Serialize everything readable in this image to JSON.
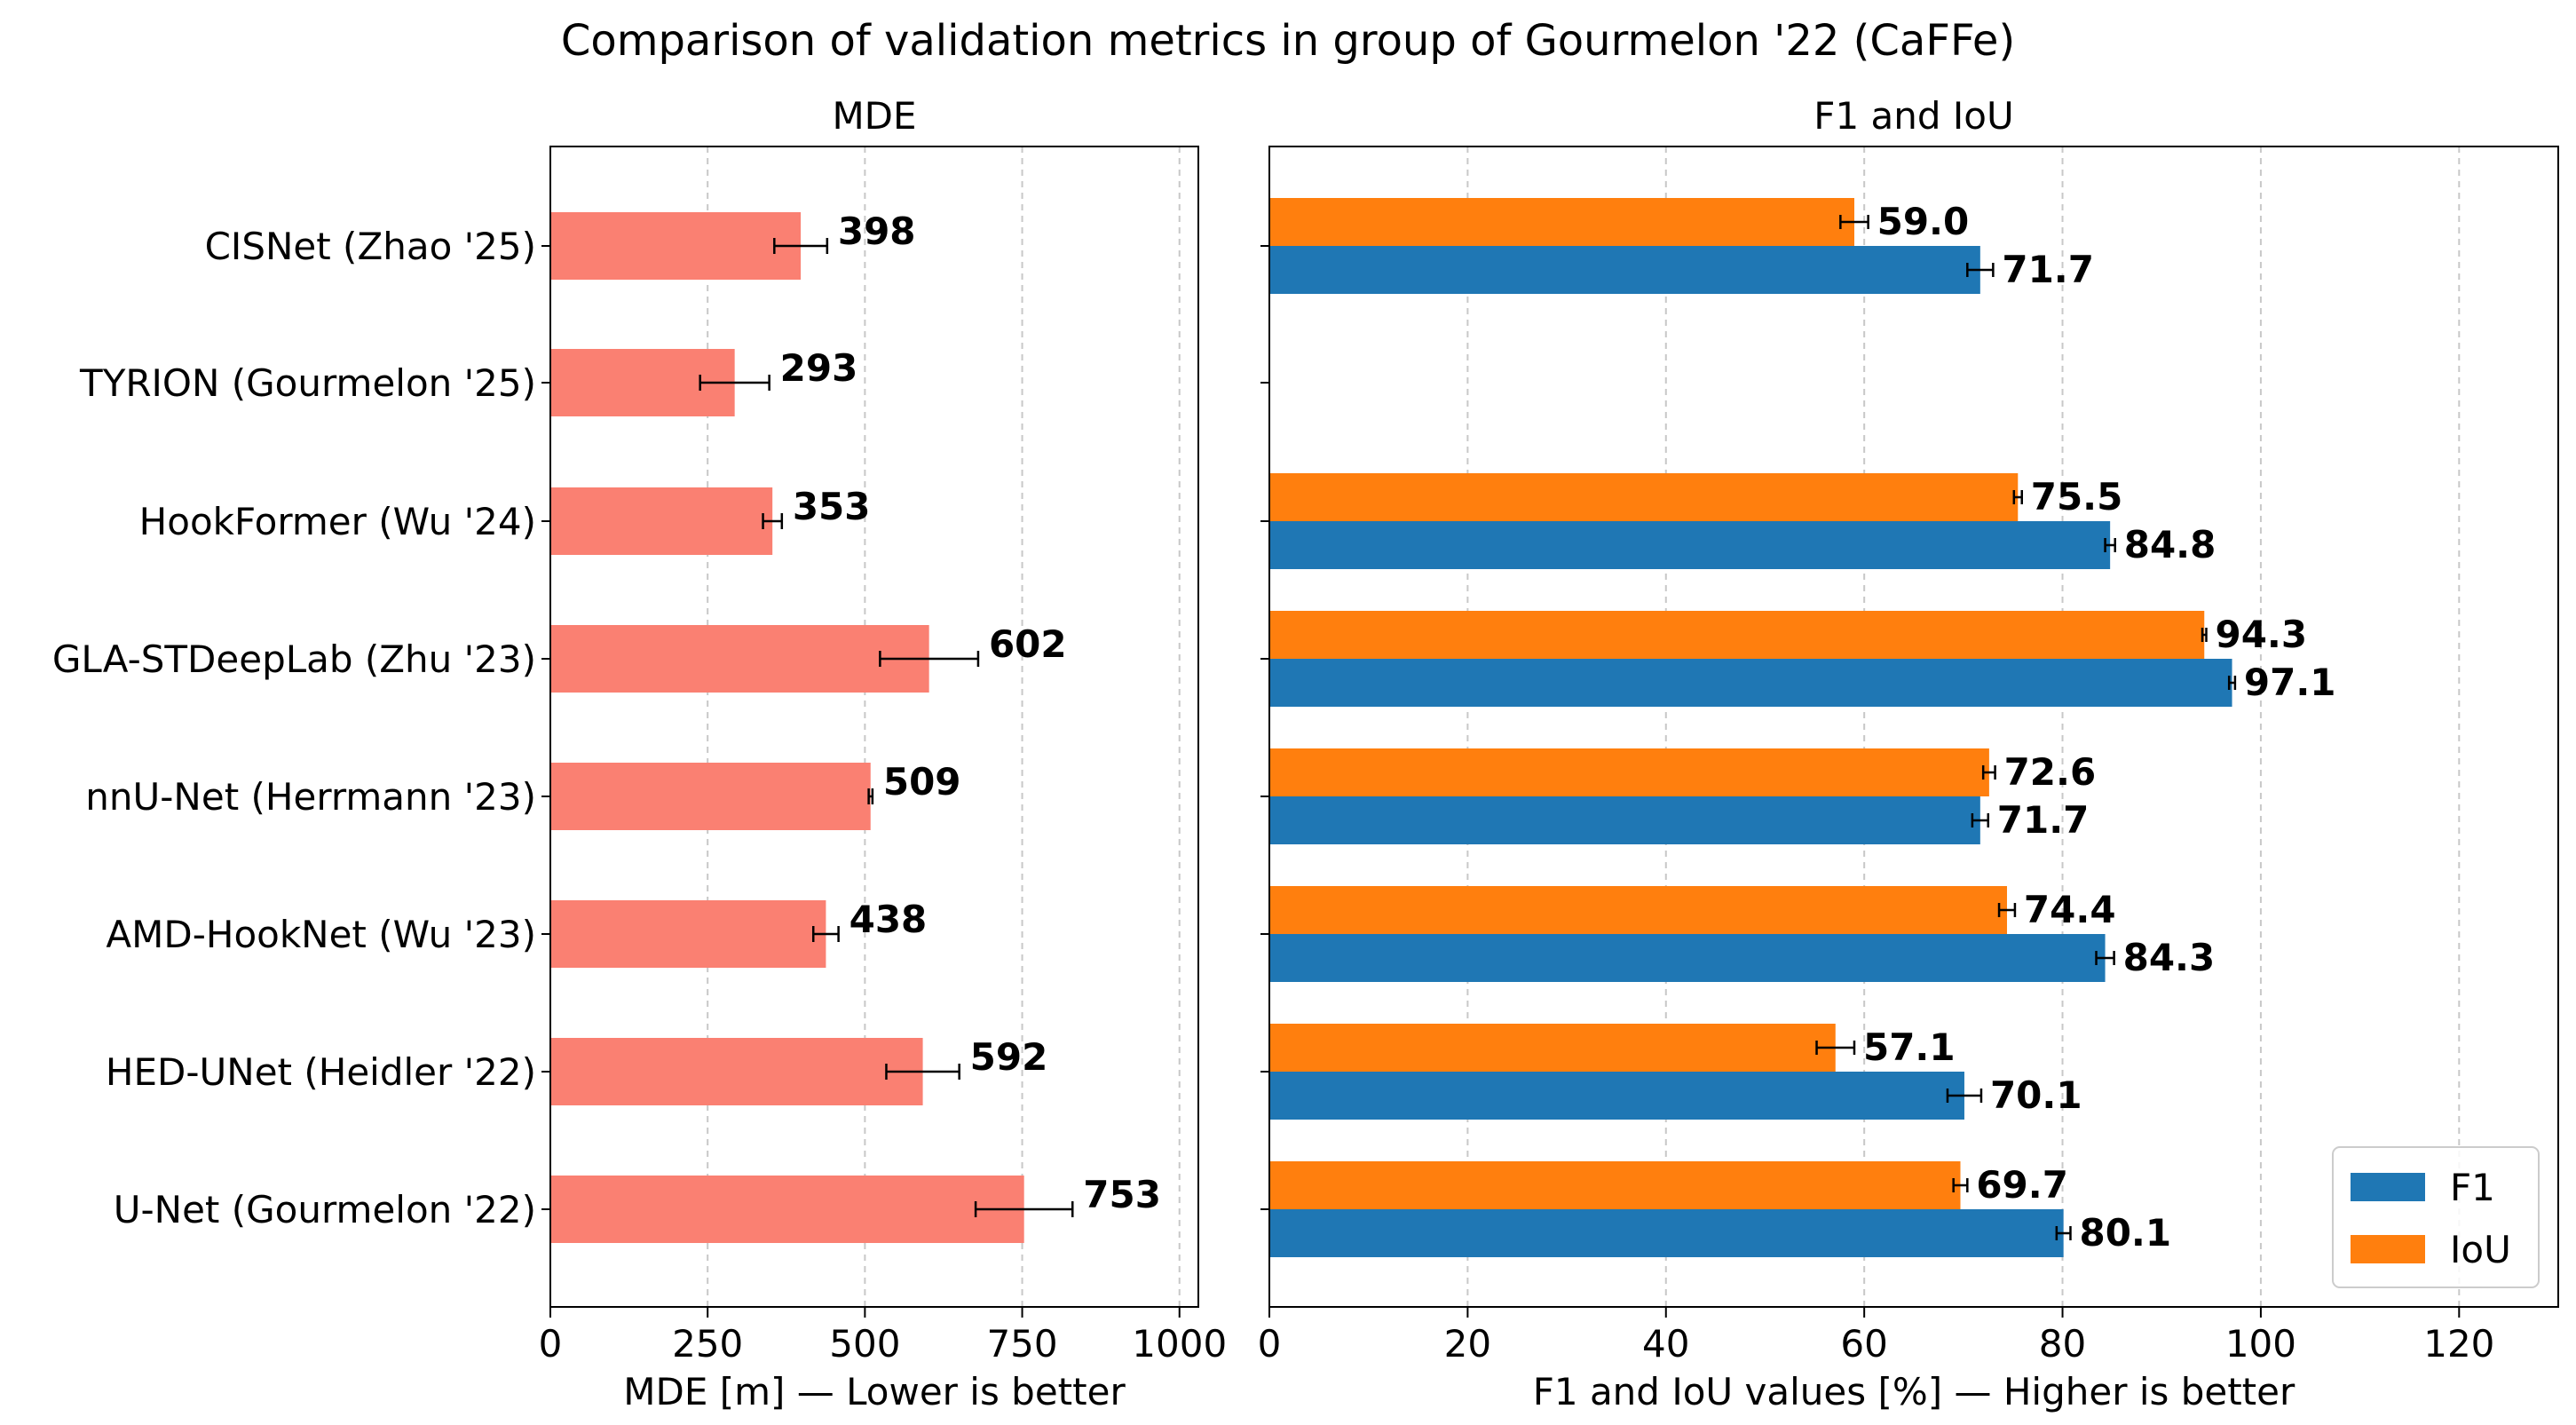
{
  "title": "Comparison of validation metrics in group of Gourmelon '22 (CaFFe)",
  "chart_data": [
    {
      "type": "bar",
      "orientation": "horizontal",
      "title": "MDE",
      "xlabel": "MDE [m] — Lower is better",
      "xlim": [
        0,
        1030
      ],
      "xticks": [
        0,
        250,
        500,
        750,
        1000
      ],
      "grid": "x, dashed",
      "categories": [
        "CISNet (Zhao '25)",
        "TYRION (Gourmelon '25)",
        "HookFormer (Wu '24)",
        "GLA-STDeepLab (Zhu '23)",
        "nnU-Net (Herrmann '23)",
        "AMD-HookNet (Wu '23)",
        "HED-UNet (Heidler '22)",
        "U-Net (Gourmelon '22)"
      ],
      "values": [
        398,
        293,
        353,
        602,
        509,
        438,
        592,
        753
      ],
      "errors": [
        42,
        55,
        15,
        78,
        3,
        20,
        58,
        77
      ],
      "labels": [
        "398",
        "293",
        "353",
        "602",
        "509",
        "438",
        "592",
        "753"
      ],
      "color": "#fa8072"
    },
    {
      "type": "bar",
      "orientation": "horizontal",
      "title": "F1 and IoU",
      "xlabel": "F1 and IoU values [%] — Higher is better",
      "xlim": [
        0,
        130
      ],
      "xticks": [
        0,
        20,
        40,
        60,
        80,
        100,
        120
      ],
      "grid": "x, dashed",
      "categories": [
        "CISNet (Zhao '25)",
        "TYRION (Gourmelon '25)",
        "HookFormer (Wu '24)",
        "GLA-STDeepLab (Zhu '23)",
        "nnU-Net (Herrmann '23)",
        "AMD-HookNet (Wu '23)",
        "HED-UNet (Heidler '22)",
        "U-Net (Gourmelon '22)"
      ],
      "series": [
        {
          "name": "F1",
          "color": "#1f77b4",
          "values": [
            71.7,
            null,
            84.8,
            97.1,
            71.7,
            84.3,
            70.1,
            80.1
          ],
          "errors": [
            1.3,
            null,
            0.5,
            0.3,
            0.8,
            0.9,
            1.7,
            0.7
          ],
          "labels": [
            "71.7",
            "",
            "84.8",
            "97.1",
            "71.7",
            "84.3",
            "70.1",
            "80.1"
          ]
        },
        {
          "name": "IoU",
          "color": "#ff7f0e",
          "values": [
            59.0,
            null,
            75.5,
            94.3,
            72.6,
            74.4,
            57.1,
            69.7
          ],
          "errors": [
            1.4,
            null,
            0.4,
            0.2,
            0.6,
            0.8,
            1.9,
            0.7
          ],
          "labels": [
            "59.0",
            "",
            "75.5",
            "94.3",
            "72.6",
            "74.4",
            "57.1",
            "69.7"
          ]
        }
      ],
      "legend": {
        "position": "lower-right",
        "entries": [
          "F1",
          "IoU"
        ]
      }
    }
  ]
}
